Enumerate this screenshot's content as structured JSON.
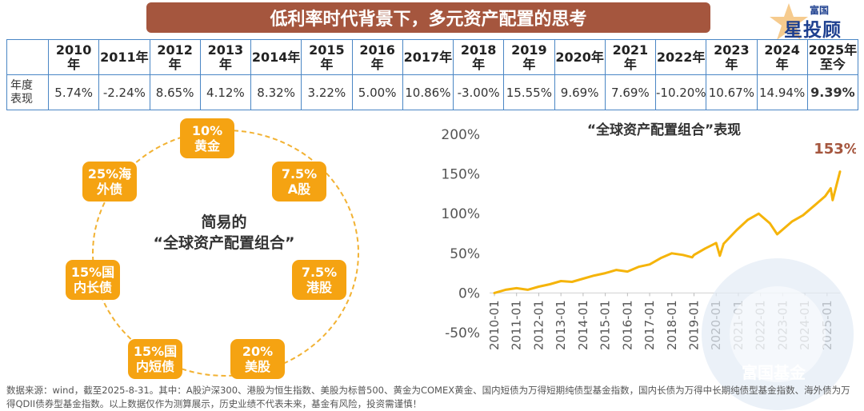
{
  "header": {
    "title": "低利率时代背景下，多元资产配置的思考",
    "logo_top": "富国",
    "logo_main": "星投顾"
  },
  "table": {
    "row_label": "年度\n表现",
    "years": [
      "2010\n年",
      "2011年",
      "2012\n年",
      "2013\n年",
      "2014年",
      "2015\n年",
      "2016\n年",
      "2017年",
      "2018\n年",
      "2019\n年",
      "2020年",
      "2021\n年",
      "2022年",
      "2023\n年",
      "2024\n年",
      "2025年\n至今"
    ],
    "values": [
      "5.74%",
      "-2.24%",
      "8.65%",
      "4.12%",
      "8.32%",
      "3.22%",
      "5.00%",
      "10.86%",
      "-3.00%",
      "15.55%",
      "9.69%",
      "7.69%",
      "-10.20%",
      "10.67%",
      "14.94%",
      "9.39%"
    ]
  },
  "portfolio": {
    "title_line1": "简易的",
    "title_line2": "“全球资产配置组合”",
    "items": [
      {
        "label": "10%\n黄金"
      },
      {
        "label": "7.5%\nA股"
      },
      {
        "label": "7.5%\n港股"
      },
      {
        "label": "20%\n美股"
      },
      {
        "label": "15%国\n内短债"
      },
      {
        "label": "15%国\n内长债"
      },
      {
        "label": "25%海\n外债"
      }
    ]
  },
  "chart_data": {
    "type": "line",
    "title": "“全球资产配置组合”表现",
    "annotation": "153%",
    "ylim": [
      -50,
      200
    ],
    "yticks": [
      "-50%",
      "0%",
      "50%",
      "100%",
      "150%",
      "200%"
    ],
    "xticks": [
      "2010-01",
      "2011-01",
      "2012-01",
      "2013-01",
      "2014-01",
      "2015-01",
      "2016-01",
      "2017-01",
      "2018-01",
      "2019-01",
      "2020-01",
      "2021-01",
      "2022-01",
      "2023-01",
      "2024-01",
      "2025-01"
    ],
    "series": [
      {
        "color": "#f5b40a",
        "x": [
          "2010-01",
          "2010-07",
          "2011-01",
          "2011-07",
          "2012-01",
          "2012-07",
          "2013-01",
          "2013-07",
          "2014-01",
          "2014-07",
          "2015-01",
          "2015-07",
          "2016-01",
          "2016-07",
          "2017-01",
          "2017-07",
          "2018-01",
          "2018-07",
          "2018-12",
          "2019-01",
          "2019-07",
          "2020-01",
          "2020-03",
          "2020-05",
          "2020-12",
          "2021-06",
          "2021-12",
          "2022-06",
          "2022-10",
          "2023-06",
          "2023-12",
          "2024-06",
          "2024-12",
          "2025-03",
          "2025-04",
          "2025-08"
        ],
        "values": [
          0,
          4,
          6,
          4,
          8,
          11,
          15,
          14,
          18,
          22,
          25,
          29,
          27,
          33,
          36,
          44,
          50,
          48,
          45,
          48,
          56,
          63,
          47,
          62,
          79,
          92,
          100,
          88,
          74,
          90,
          98,
          110,
          122,
          132,
          117,
          153
        ]
      }
    ]
  },
  "footnote": "数据来源：wind，截至2025-8-31。其中：A股沪深300、港股为恒生指数、美股为标普500、黄金为COMEX黄金、国内短债为万得短期纯债型基金指数，国内长债为万得中长期纯债型基金指数、海外债为万得QDII债券型基金指数。以上数据仅作为测算展示，历史业绩不代表未来，基金有风险，投资需谨慎！",
  "watermark_text": "富国基金",
  "colors": {
    "banner": "#a5563e",
    "accent_orange": "#f5a312",
    "negative_blue": "#1f6fbf",
    "table_border": "#4a86c5",
    "annotation_red": "#a5563e"
  }
}
